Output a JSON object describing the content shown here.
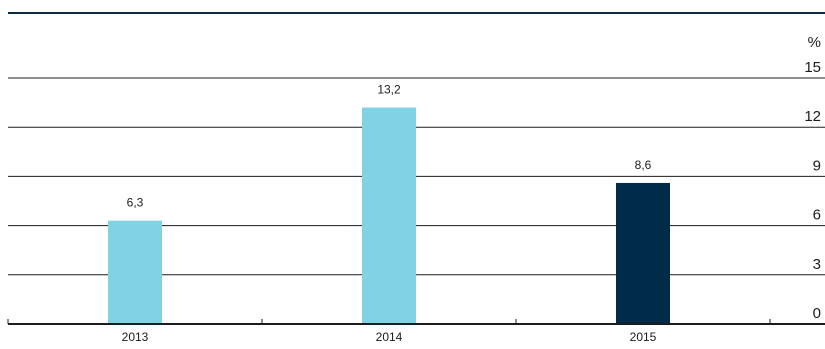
{
  "chart_data": {
    "type": "bar",
    "title": "",
    "unit_label": "%",
    "categories": [
      "2013",
      "2014",
      "2015"
    ],
    "values": [
      6.3,
      13.2,
      8.6
    ],
    "value_labels": [
      "6,3",
      "13,2",
      "8,6"
    ],
    "bar_colors": [
      "#7fd3e3",
      "#7fd3e3",
      "#002b49"
    ],
    "ylim": [
      0,
      15
    ],
    "yticks": [
      "0",
      "3",
      "6",
      "9",
      "12",
      "15"
    ],
    "ytick_values": [
      0,
      3,
      6,
      9,
      12,
      15
    ],
    "grid": true,
    "tick_label_position": "right"
  }
}
